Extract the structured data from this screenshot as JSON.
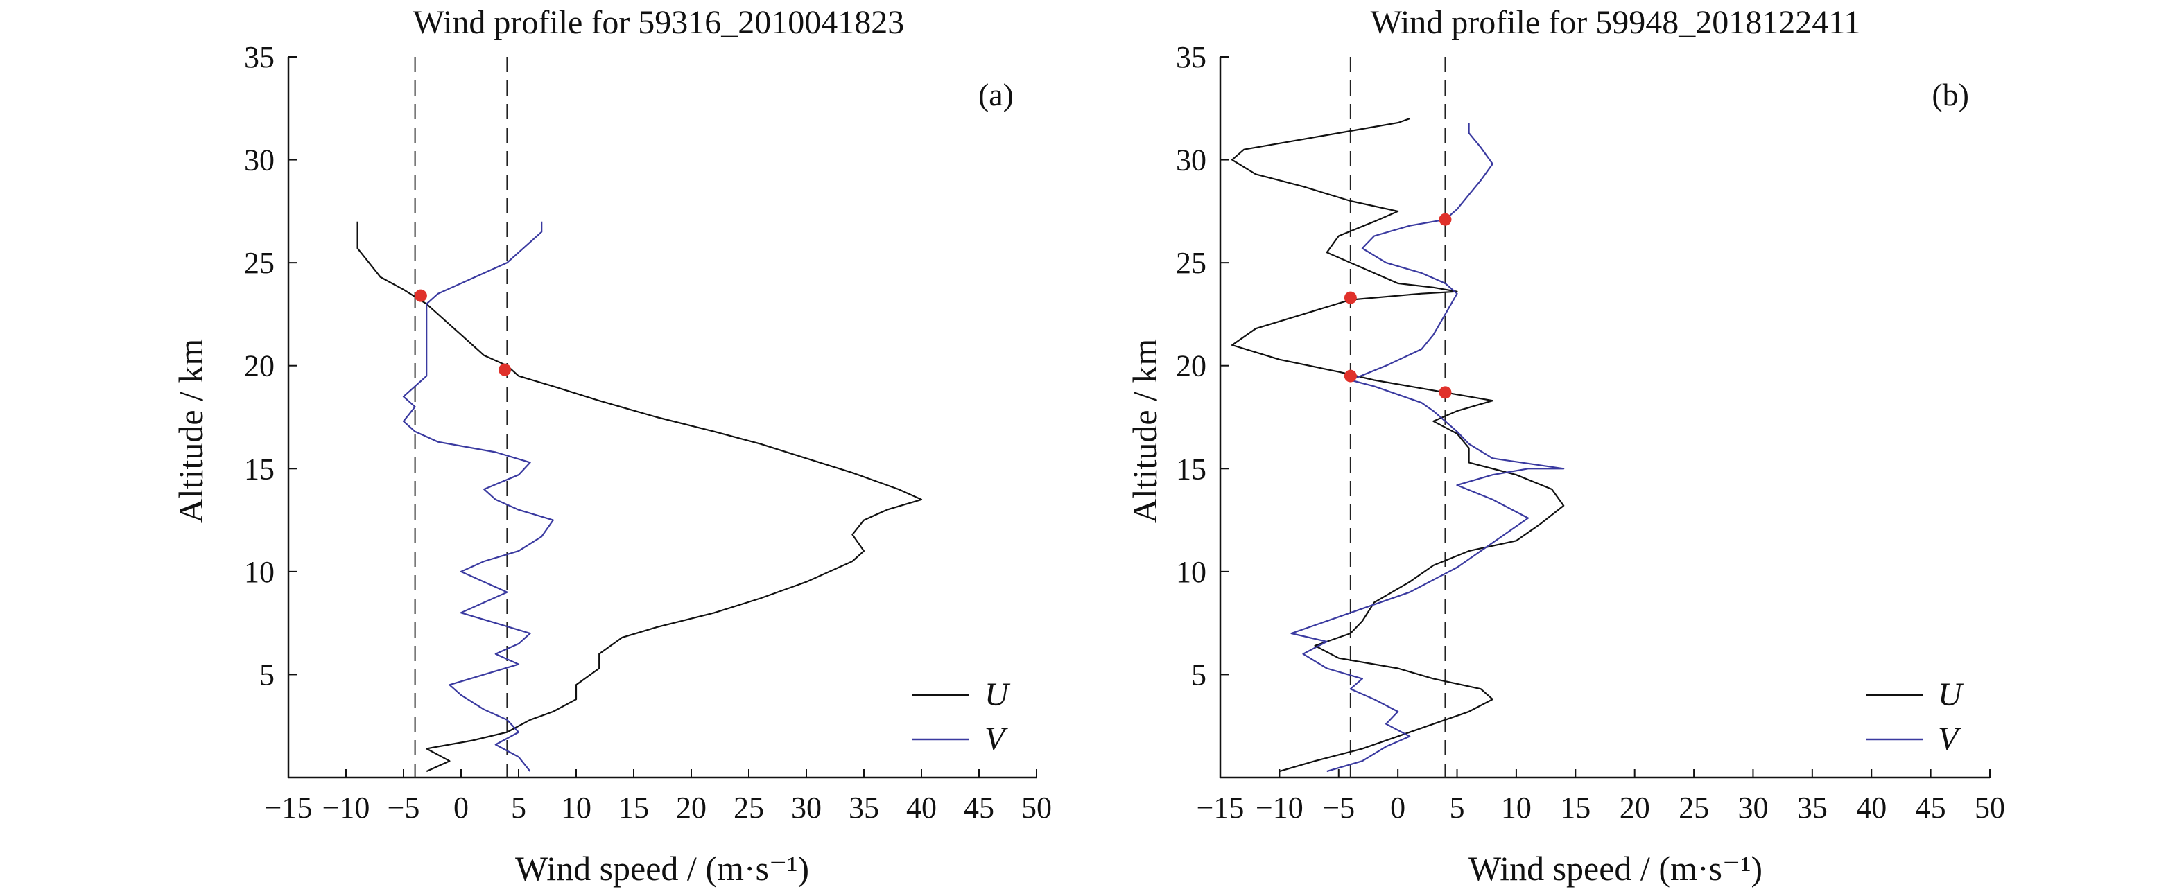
{
  "chart_data": [
    {
      "type": "line",
      "title": "Wind profile for 59316_2010041823",
      "panel_label": "(a)",
      "xlabel": "Wind speed / (m·s⁻¹)",
      "ylabel": "Altitude / km",
      "xlim": [
        -15,
        50
      ],
      "ylim": [
        0,
        35
      ],
      "xticks": [
        -15,
        -10,
        -5,
        0,
        5,
        10,
        15,
        20,
        25,
        30,
        35,
        40,
        45,
        50
      ],
      "yticks": [
        5,
        10,
        15,
        20,
        25,
        30,
        35
      ],
      "grid": false,
      "legend": "bottom-right",
      "threshold_lines": [
        -4,
        4
      ],
      "series": [
        {
          "name": "U",
          "color": "#111111",
          "points": [
            [
              -3,
              0.3
            ],
            [
              -1,
              0.8
            ],
            [
              -3,
              1.4
            ],
            [
              1,
              1.8
            ],
            [
              4,
              2.2
            ],
            [
              6,
              2.8
            ],
            [
              8,
              3.2
            ],
            [
              10,
              3.8
            ],
            [
              10,
              4.5
            ],
            [
              12,
              5.3
            ],
            [
              12,
              6.0
            ],
            [
              14,
              6.8
            ],
            [
              17,
              7.3
            ],
            [
              22,
              8.0
            ],
            [
              26,
              8.7
            ],
            [
              30,
              9.5
            ],
            [
              32,
              10.0
            ],
            [
              34,
              10.5
            ],
            [
              35,
              11.0
            ],
            [
              34,
              11.8
            ],
            [
              35,
              12.5
            ],
            [
              37,
              13.0
            ],
            [
              40,
              13.5
            ],
            [
              38,
              14.0
            ],
            [
              34,
              14.8
            ],
            [
              30,
              15.5
            ],
            [
              26,
              16.2
            ],
            [
              22,
              16.8
            ],
            [
              17,
              17.5
            ],
            [
              12,
              18.3
            ],
            [
              8,
              19.0
            ],
            [
              5,
              19.5
            ],
            [
              4,
              20.0
            ],
            [
              2,
              20.5
            ],
            [
              1,
              21.0
            ],
            [
              0,
              21.5
            ],
            [
              -1,
              22.0
            ],
            [
              -3,
              23.0
            ],
            [
              -5,
              23.7
            ],
            [
              -7,
              24.3
            ],
            [
              -8,
              25.0
            ],
            [
              -9,
              25.7
            ],
            [
              -9,
              26.5
            ],
            [
              -9,
              27.0
            ]
          ]
        },
        {
          "name": "V",
          "color": "#3a3aa0",
          "points": [
            [
              6,
              0.3
            ],
            [
              5,
              1.0
            ],
            [
              3,
              1.6
            ],
            [
              5,
              2.2
            ],
            [
              4,
              2.8
            ],
            [
              2,
              3.3
            ],
            [
              0,
              4.0
            ],
            [
              -1,
              4.5
            ],
            [
              2,
              5.0
            ],
            [
              5,
              5.5
            ],
            [
              3,
              6.0
            ],
            [
              5,
              6.5
            ],
            [
              6,
              7.0
            ],
            [
              3,
              7.5
            ],
            [
              0,
              8.0
            ],
            [
              2,
              8.5
            ],
            [
              4,
              9.0
            ],
            [
              2,
              9.5
            ],
            [
              0,
              10.0
            ],
            [
              2,
              10.5
            ],
            [
              5,
              11.0
            ],
            [
              7,
              11.7
            ],
            [
              8,
              12.5
            ],
            [
              5,
              13.0
            ],
            [
              3,
              13.5
            ],
            [
              2,
              14.0
            ],
            [
              5,
              14.7
            ],
            [
              6,
              15.3
            ],
            [
              3,
              15.8
            ],
            [
              -2,
              16.3
            ],
            [
              -4,
              16.8
            ],
            [
              -5,
              17.3
            ],
            [
              -4,
              18.0
            ],
            [
              -5,
              18.5
            ],
            [
              -4,
              19.0
            ],
            [
              -3,
              19.5
            ],
            [
              -3,
              20.0
            ],
            [
              -3,
              20.5
            ],
            [
              -3,
              21.0
            ],
            [
              -3,
              21.5
            ],
            [
              -3,
              22.0
            ],
            [
              -3,
              22.5
            ],
            [
              -3,
              23.0
            ],
            [
              -2,
              23.5
            ],
            [
              0,
              24.0
            ],
            [
              2,
              24.5
            ],
            [
              4,
              25.0
            ],
            [
              5,
              25.5
            ],
            [
              6,
              26.0
            ],
            [
              7,
              26.5
            ],
            [
              7,
              27.0
            ]
          ]
        }
      ],
      "crossings": [
        {
          "x": -3.5,
          "y": 23.4
        },
        {
          "x": 3.8,
          "y": 19.8
        }
      ],
      "legend_entries": [
        "U",
        "V"
      ]
    },
    {
      "type": "line",
      "title": "Wind profile for 59948_2018122411",
      "panel_label": "(b)",
      "xlabel": "Wind speed / (m·s⁻¹)",
      "ylabel": "Altitude / km",
      "xlim": [
        -15,
        50
      ],
      "ylim": [
        0,
        35
      ],
      "xticks": [
        -15,
        -10,
        -5,
        0,
        5,
        10,
        15,
        20,
        25,
        30,
        35,
        40,
        45,
        50
      ],
      "yticks": [
        5,
        10,
        15,
        20,
        25,
        30,
        35
      ],
      "grid": false,
      "legend": "bottom-right",
      "threshold_lines": [
        -4,
        4
      ],
      "series": [
        {
          "name": "U",
          "color": "#111111",
          "points": [
            [
              -10,
              0.3
            ],
            [
              -7,
              0.8
            ],
            [
              -3,
              1.4
            ],
            [
              0,
              2.0
            ],
            [
              3,
              2.6
            ],
            [
              6,
              3.2
            ],
            [
              8,
              3.8
            ],
            [
              7,
              4.3
            ],
            [
              3,
              4.8
            ],
            [
              0,
              5.3
            ],
            [
              -5,
              5.8
            ],
            [
              -7,
              6.4
            ],
            [
              -4,
              7.0
            ],
            [
              -3,
              7.6
            ],
            [
              -2,
              8.5
            ],
            [
              1,
              9.5
            ],
            [
              3,
              10.3
            ],
            [
              6,
              11.0
            ],
            [
              10,
              11.5
            ],
            [
              12,
              12.3
            ],
            [
              14,
              13.2
            ],
            [
              13,
              14.0
            ],
            [
              10,
              14.7
            ],
            [
              6,
              15.3
            ],
            [
              6,
              16.0
            ],
            [
              5,
              16.7
            ],
            [
              3,
              17.3
            ],
            [
              5,
              17.8
            ],
            [
              8,
              18.3
            ],
            [
              5,
              18.6
            ],
            [
              1,
              19.0
            ],
            [
              -2,
              19.3
            ],
            [
              -5,
              19.7
            ],
            [
              -10,
              20.3
            ],
            [
              -14,
              21.0
            ],
            [
              -12,
              21.8
            ],
            [
              -8,
              22.5
            ],
            [
              -4,
              23.2
            ],
            [
              2,
              23.5
            ],
            [
              5,
              23.6
            ],
            [
              3,
              23.8
            ],
            [
              0,
              24.0
            ],
            [
              -2,
              24.5
            ],
            [
              -4,
              25.0
            ],
            [
              -6,
              25.5
            ],
            [
              -5,
              26.3
            ],
            [
              -2,
              27.0
            ],
            [
              0,
              27.5
            ],
            [
              -4,
              28.0
            ],
            [
              -8,
              28.7
            ],
            [
              -12,
              29.3
            ],
            [
              -14,
              30.0
            ],
            [
              -13,
              30.5
            ],
            [
              -8,
              31.0
            ],
            [
              -3,
              31.5
            ],
            [
              0,
              31.8
            ],
            [
              1,
              32.0
            ]
          ]
        },
        {
          "name": "V",
          "color": "#3a3aa0",
          "points": [
            [
              -6,
              0.3
            ],
            [
              -3,
              0.8
            ],
            [
              -1,
              1.5
            ],
            [
              1,
              2.0
            ],
            [
              -1,
              2.6
            ],
            [
              0,
              3.2
            ],
            [
              -2,
              3.8
            ],
            [
              -4,
              4.3
            ],
            [
              -3,
              4.8
            ],
            [
              -6,
              5.3
            ],
            [
              -8,
              6.0
            ],
            [
              -6,
              6.6
            ],
            [
              -9,
              7.0
            ],
            [
              -6,
              7.6
            ],
            [
              -3,
              8.2
            ],
            [
              1,
              9.0
            ],
            [
              3,
              9.6
            ],
            [
              5,
              10.2
            ],
            [
              7,
              11.0
            ],
            [
              9,
              11.8
            ],
            [
              11,
              12.6
            ],
            [
              8,
              13.5
            ],
            [
              5,
              14.2
            ],
            [
              8,
              14.7
            ],
            [
              11,
              15.0
            ],
            [
              14,
              15.0
            ],
            [
              8,
              15.5
            ],
            [
              6,
              16.2
            ],
            [
              5,
              16.8
            ],
            [
              4,
              17.3
            ],
            [
              3,
              17.8
            ],
            [
              2,
              18.2
            ],
            [
              0,
              18.6
            ],
            [
              -2,
              19.0
            ],
            [
              -4,
              19.3
            ],
            [
              -1,
              20.0
            ],
            [
              2,
              20.8
            ],
            [
              3,
              21.5
            ],
            [
              4,
              22.5
            ],
            [
              5,
              23.5
            ],
            [
              4,
              24.0
            ],
            [
              2,
              24.5
            ],
            [
              -1,
              25.0
            ],
            [
              -3,
              25.7
            ],
            [
              -2,
              26.3
            ],
            [
              1,
              26.8
            ],
            [
              4,
              27.1
            ],
            [
              5,
              27.6
            ],
            [
              6,
              28.3
            ],
            [
              7,
              29.0
            ],
            [
              8,
              29.8
            ],
            [
              7,
              30.6
            ],
            [
              6,
              31.3
            ],
            [
              6,
              31.8
            ]
          ]
        }
      ],
      "crossings": [
        {
          "x": -4,
          "y": 23.3
        },
        {
          "x": -4,
          "y": 19.5
        },
        {
          "x": 4,
          "y": 27.1
        },
        {
          "x": 4,
          "y": 18.7
        }
      ],
      "legend_entries": [
        "U",
        "V"
      ]
    }
  ]
}
